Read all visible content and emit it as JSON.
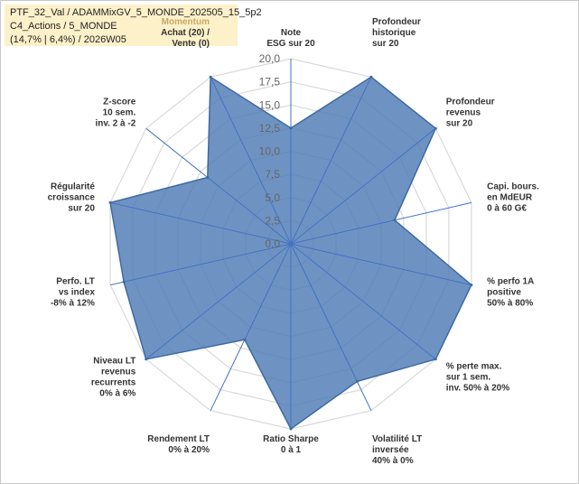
{
  "title_box": {
    "line1": "PTF_32_Val / ADAMMixGV_5_MONDE_202505_15_5p2",
    "line2": "C4_Actions / 5_MONDE",
    "line3": "(14,7% | 6,4%) / 2026W05"
  },
  "chart_data": {
    "type": "radar",
    "r_range": [
      0,
      20
    ],
    "r_ticks": [
      "0,0",
      "2,5",
      "5,0",
      "7,5",
      "10,0",
      "12,5",
      "15,0",
      "17,5",
      "20,0"
    ],
    "grid": true,
    "colors": {
      "fill": "#4e7bb5",
      "stroke": "#3d6aa3",
      "grid": "#d9d9d9",
      "spokes": "#4472c4"
    },
    "axes": [
      {
        "lines": [
          "Note",
          "ESG sur 20"
        ],
        "value": 12.5
      },
      {
        "lines": [
          "Profondeur",
          "historique",
          "sur 20"
        ],
        "value": 20
      },
      {
        "lines": [
          "Profondeur",
          "revenus",
          "sur 20"
        ],
        "value": 20
      },
      {
        "lines": [
          "Capi. bours.",
          "en MdEUR",
          "0 à 60 G€"
        ],
        "value": 11.5
      },
      {
        "lines": [
          "% perfo 1A",
          "positive",
          "50% à 80%"
        ],
        "value": 20
      },
      {
        "lines": [
          "% perte max.",
          "sur 1 sem.",
          "inv. 50% à 20%"
        ],
        "value": 20
      },
      {
        "lines": [
          "Volatilité LT",
          "inversée",
          "40% à 0%"
        ],
        "value": 16.5
      },
      {
        "lines": [
          "Ratio Sharpe",
          "0 à 1"
        ],
        "value": 20
      },
      {
        "lines": [
          "Rendement LT",
          "0% à 20%"
        ],
        "value": 11.5
      },
      {
        "lines": [
          "Niveau LT",
          "revenus",
          "recurrents",
          "0% à 6%"
        ],
        "value": 20
      },
      {
        "lines": [
          "Perfo. LT",
          "vs index",
          "-8% à 12%"
        ],
        "value": 18.5
      },
      {
        "lines": [
          "Régularité",
          "croissance",
          "sur 20"
        ],
        "value": 20
      },
      {
        "lines": [
          "Z-score",
          "10 sem.",
          "inv. 2 à -2"
        ],
        "value": 11.5
      },
      {
        "lines": [
          "Momentum",
          "Achat (20) /",
          "Vente (0)"
        ],
        "highlight_first_line": true,
        "value": 20
      }
    ]
  }
}
